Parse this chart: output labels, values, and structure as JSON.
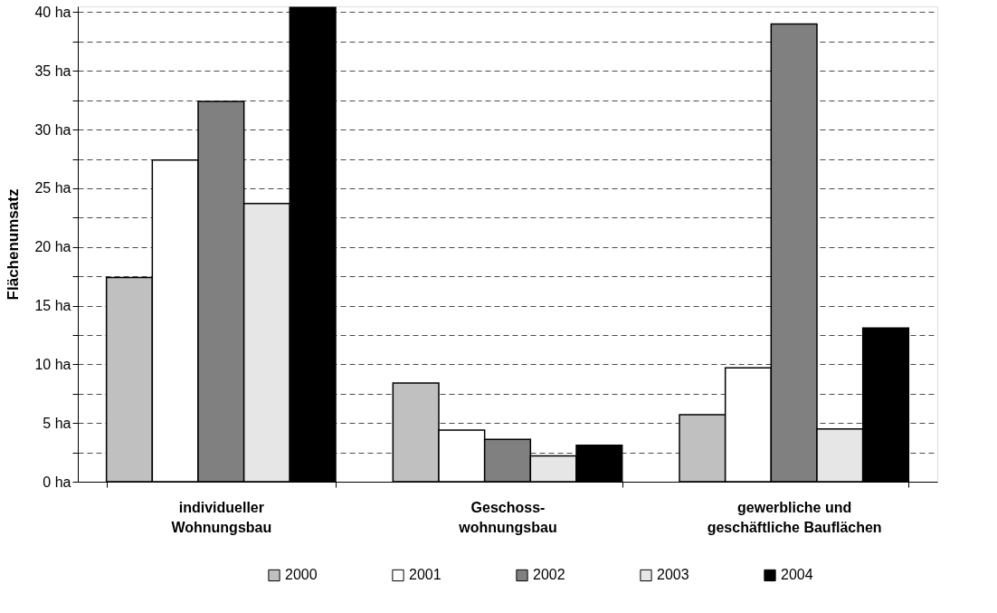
{
  "chart_data": {
    "type": "bar",
    "ylabel": "Flächenumsatz",
    "categories": [
      "individueller\nWohnungsbau",
      "Geschoss-\nwohnungsbau",
      "gewerbliche und\ngeschäftliche Bauflächen"
    ],
    "series": [
      {
        "name": "2000",
        "color": "#c0c0c0",
        "values": [
          17.4,
          8.4,
          5.7
        ]
      },
      {
        "name": "2001",
        "color": "#ffffff",
        "values": [
          27.4,
          4.4,
          9.7
        ]
      },
      {
        "name": "2002",
        "color": "#808080",
        "values": [
          32.4,
          3.6,
          39.0
        ]
      },
      {
        "name": "2003",
        "color": "#e6e6e6",
        "values": [
          23.7,
          2.2,
          4.5
        ]
      },
      {
        "name": "2004",
        "color": "#000000",
        "values": [
          40.4,
          3.1,
          13.1
        ]
      }
    ],
    "ylim": [
      0,
      40.5
    ],
    "yticks": [
      {
        "value": 0,
        "label": "0 ha"
      },
      {
        "value": 2.5,
        "label": null
      },
      {
        "value": 5,
        "label": "5 ha"
      },
      {
        "value": 7.5,
        "label": null
      },
      {
        "value": 10,
        "label": "10 ha"
      },
      {
        "value": 12.5,
        "label": null
      },
      {
        "value": 15,
        "label": "15 ha"
      },
      {
        "value": 17.5,
        "label": null
      },
      {
        "value": 20,
        "label": "20 ha"
      },
      {
        "value": 22.5,
        "label": null
      },
      {
        "value": 25,
        "label": "25 ha"
      },
      {
        "value": 27.5,
        "label": null
      },
      {
        "value": 30,
        "label": "30 ha"
      },
      {
        "value": 32.5,
        "label": null
      },
      {
        "value": 35,
        "label": "35 ha"
      },
      {
        "value": 37.5,
        "label": null
      },
      {
        "value": 40,
        "label": "40 ha"
      }
    ],
    "grid": "y",
    "legend": "bottom"
  }
}
